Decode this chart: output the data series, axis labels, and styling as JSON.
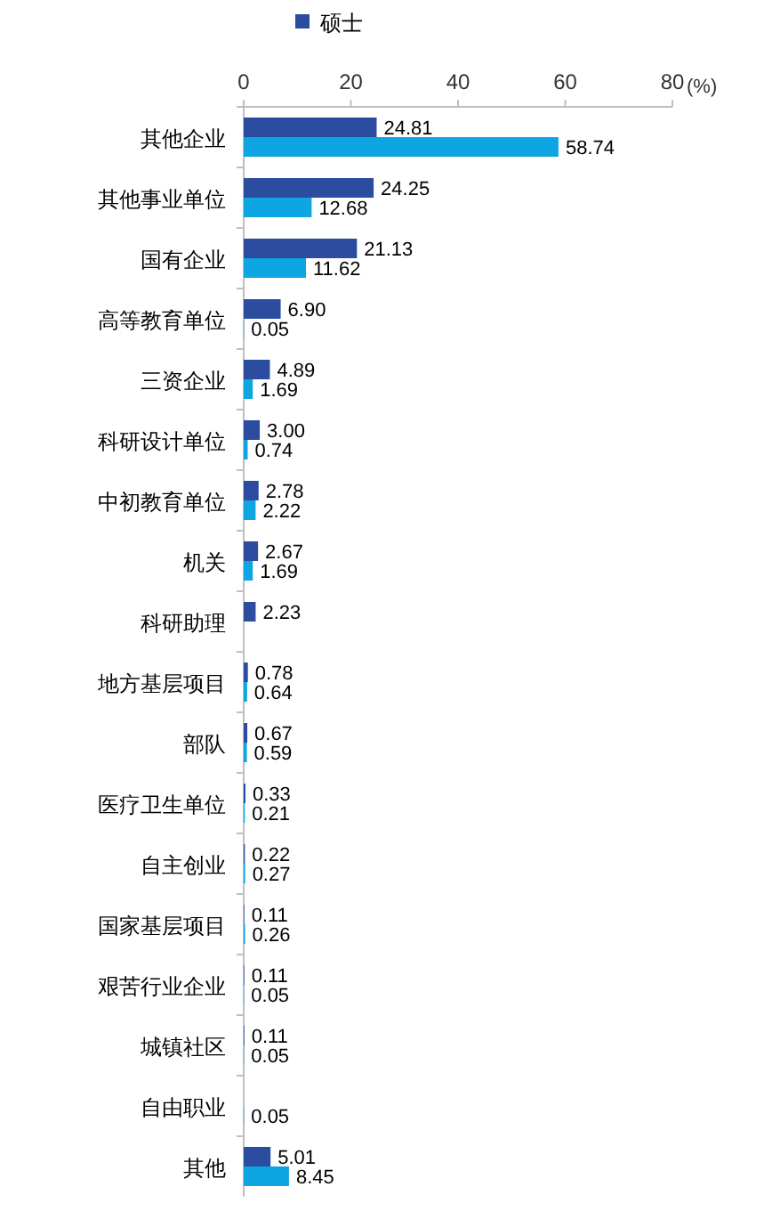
{
  "chart_data": {
    "type": "bar",
    "orientation": "horizontal",
    "xlabel": "(%)",
    "xlim": [
      0,
      80
    ],
    "xticks": [
      0,
      20,
      40,
      60,
      80
    ],
    "legend": "top",
    "grid": false,
    "categories": [
      "其他企业",
      "其他事业单位",
      "国有企业",
      "高等教育单位",
      "三资企业",
      "科研设计单位",
      "中初教育单位",
      "机关",
      "科研助理",
      "地方基层项目",
      "部队",
      "医疗卫生单位",
      "自主创业",
      "国家基层项目",
      "艰苦行业企业",
      "城镇社区",
      "自由职业",
      "其他"
    ],
    "series": [
      {
        "name": "硕士",
        "color": "#2b4c9f",
        "values": [
          24.81,
          24.25,
          21.13,
          6.9,
          4.89,
          3.0,
          2.78,
          2.67,
          2.23,
          0.78,
          0.67,
          0.33,
          0.22,
          0.11,
          0.11,
          0.11,
          null,
          5.01
        ],
        "value_labels": [
          "24.81",
          "24.25",
          "21.13",
          "6.90",
          "4.89",
          "3.00",
          "2.78",
          "2.67",
          "2.23",
          "0.78",
          "0.67",
          "0.33",
          "0.22",
          "0.11",
          "0.11",
          "0.11",
          null,
          "5.01"
        ]
      },
      {
        "color": "#0ea5e3",
        "values": [
          58.74,
          12.68,
          11.62,
          0.05,
          1.69,
          0.74,
          2.22,
          1.69,
          null,
          0.64,
          0.59,
          0.21,
          0.27,
          0.26,
          0.05,
          0.05,
          0.05,
          8.45
        ],
        "value_labels": [
          "58.74",
          "12.68",
          "11.62",
          "0.05",
          "1.69",
          "0.74",
          "2.22",
          "1.69",
          null,
          "0.64",
          "0.59",
          "0.21",
          "0.27",
          "0.26",
          "0.05",
          "0.05",
          "0.05",
          "8.45"
        ]
      }
    ]
  }
}
